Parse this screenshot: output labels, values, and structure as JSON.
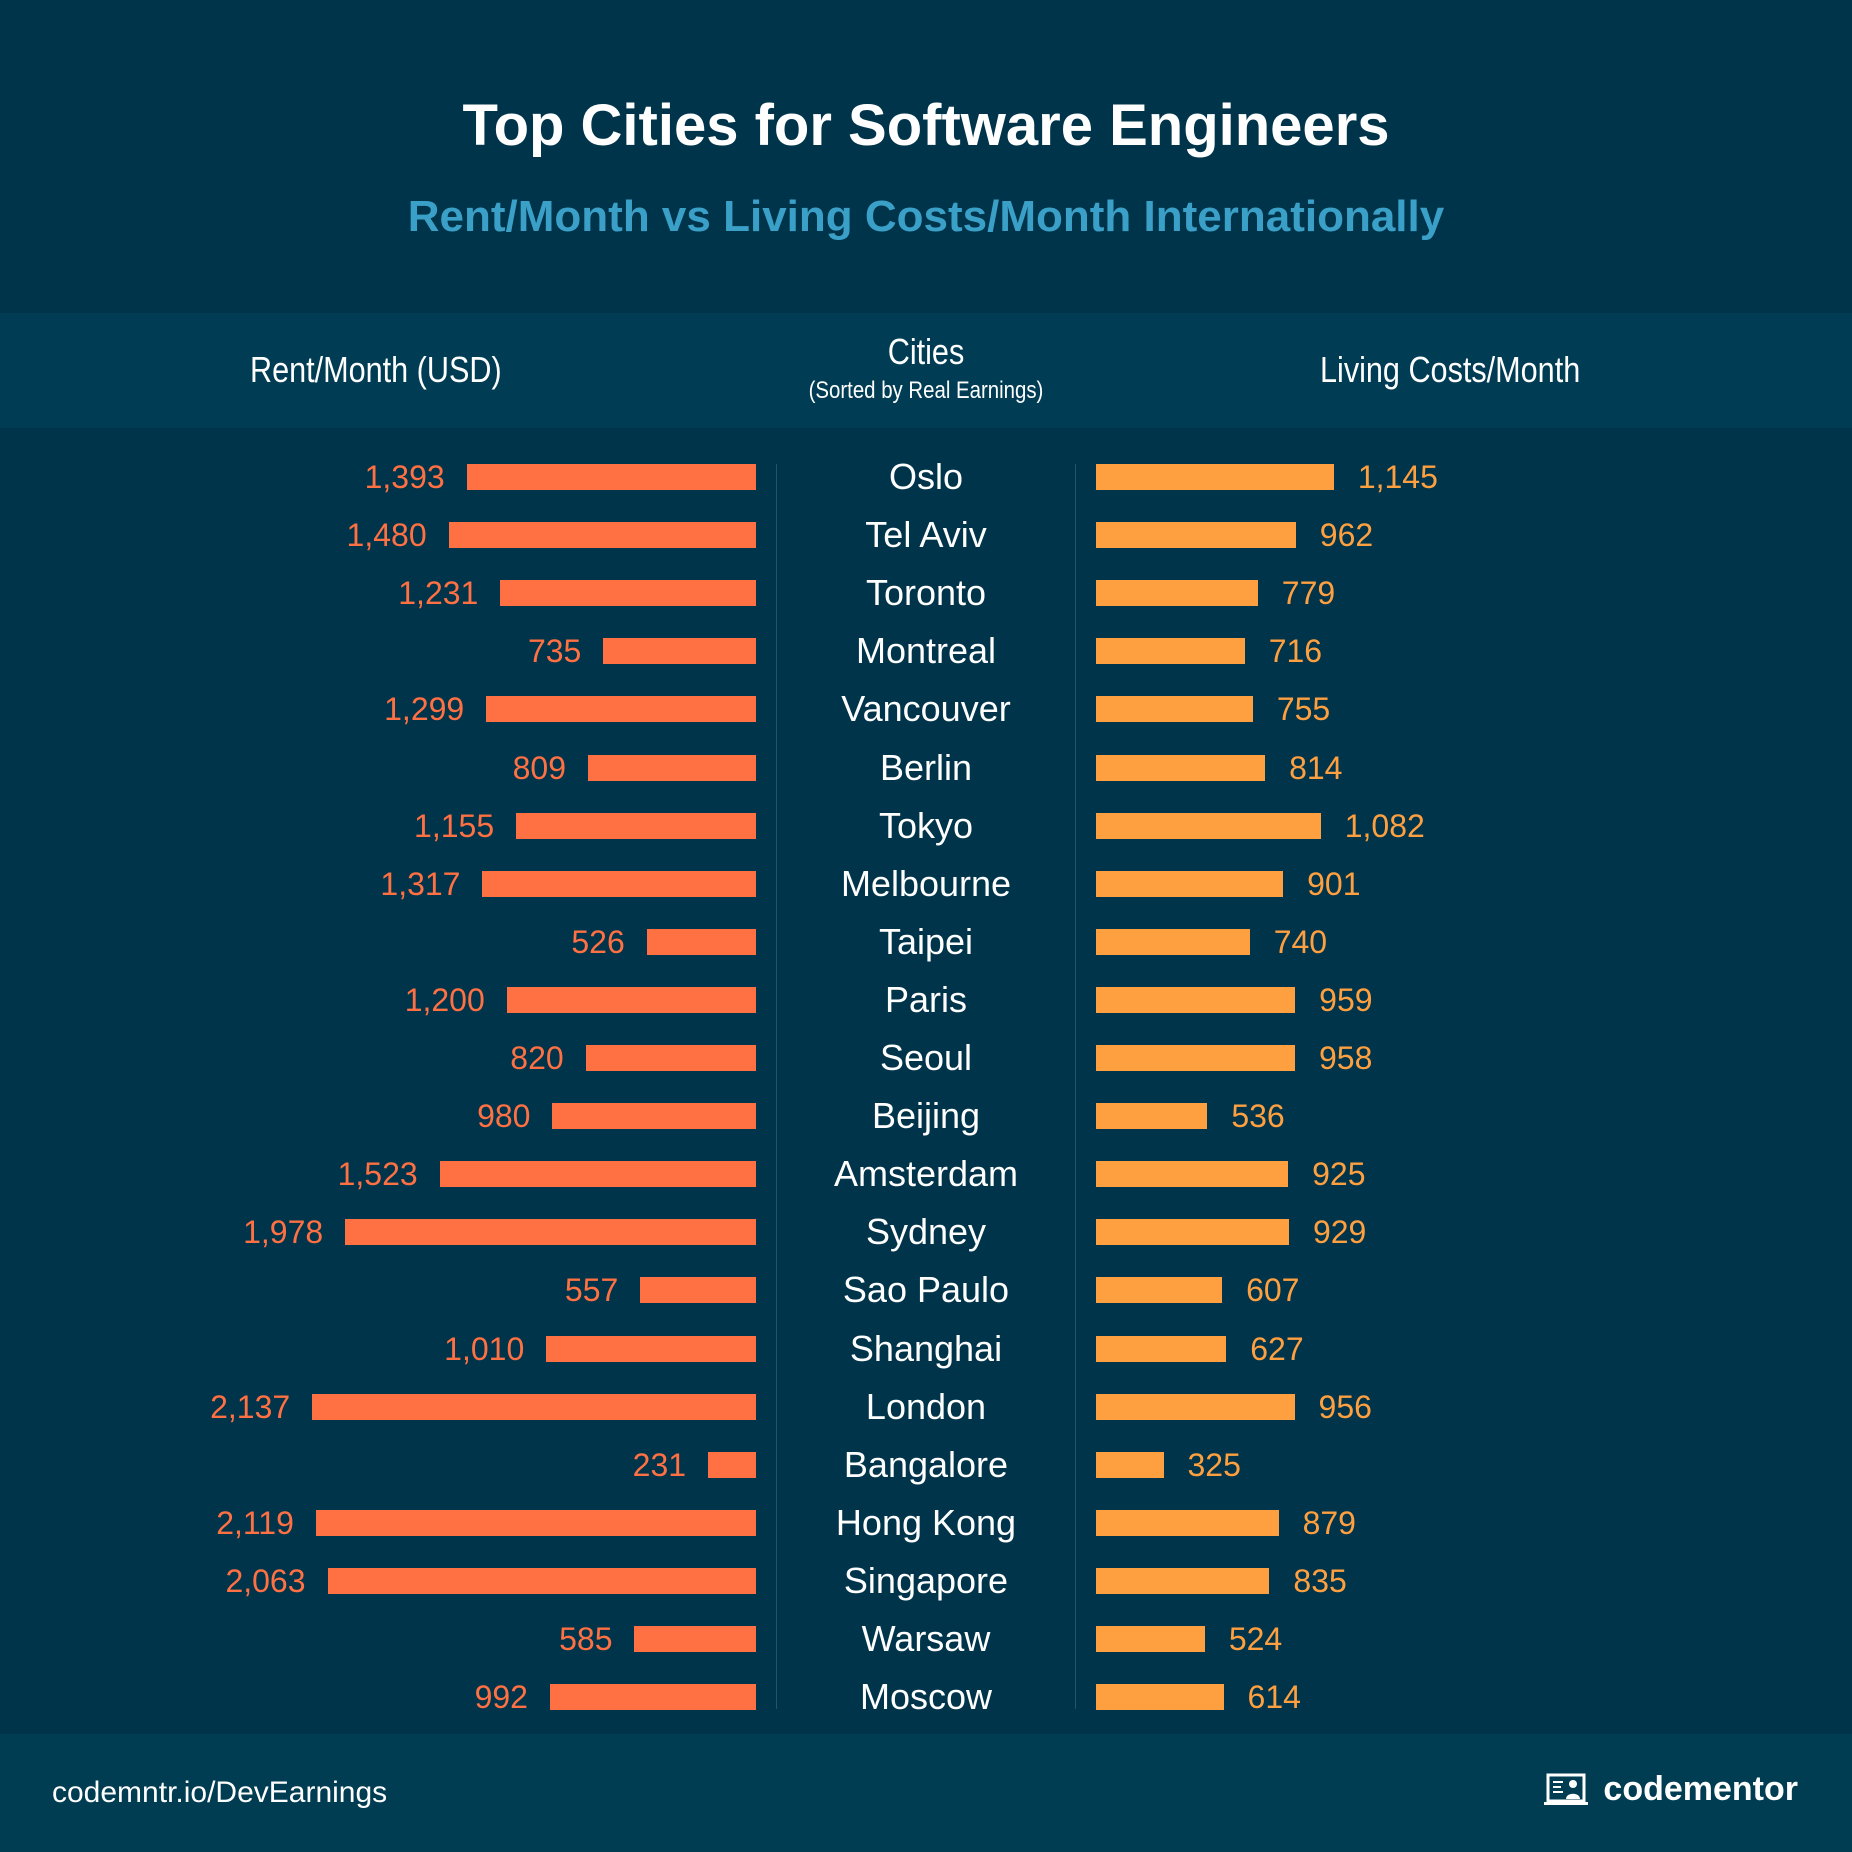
{
  "chart_data": {
    "type": "bar",
    "title": "Top Cities for Software Engineers",
    "subtitle": "Rent/Month vs Living Costs/Month Internationally",
    "column_headers": {
      "rent": "Rent/Month (USD)",
      "cities": "Cities",
      "cities_note": "(Sorted by Real Earnings)",
      "living": "Living Costs/Month"
    },
    "categories": [
      "Oslo",
      "Tel Aviv",
      "Toronto",
      "Montreal",
      "Vancouver",
      "Berlin",
      "Tokyo",
      "Melbourne",
      "Taipei",
      "Paris",
      "Seoul",
      "Beijing",
      "Amsterdam",
      "Sydney",
      "Sao Paulo",
      "Shanghai",
      "London",
      "Bangalore",
      "Hong Kong",
      "Singapore",
      "Warsaw",
      "Moscow"
    ],
    "series": [
      {
        "name": "Rent/Month (USD)",
        "color": "#ff7043",
        "values": [
          1393,
          1480,
          1231,
          735,
          1299,
          809,
          1155,
          1317,
          526,
          1200,
          820,
          980,
          1523,
          1978,
          557,
          1010,
          2137,
          231,
          2119,
          2063,
          585,
          992
        ],
        "labels": [
          "1,393",
          "1,480",
          "1,231",
          "735",
          "1,299",
          "809",
          "1,155",
          "1,317",
          "526",
          "1,200",
          "820",
          "980",
          "1,523",
          "1,978",
          "557",
          "1,010",
          "2,137",
          "231",
          "2,119",
          "2,063",
          "585",
          "992"
        ]
      },
      {
        "name": "Living Costs/Month",
        "color": "#ffa040",
        "values": [
          1145,
          962,
          779,
          716,
          755,
          814,
          1082,
          901,
          740,
          959,
          958,
          536,
          925,
          929,
          607,
          627,
          956,
          325,
          879,
          835,
          524,
          614
        ],
        "labels": [
          "1,145",
          "962",
          "779",
          "716",
          "755",
          "814",
          "1,082",
          "901",
          "740",
          "959",
          "958",
          "536",
          "925",
          "929",
          "607",
          "627",
          "956",
          "325",
          "879",
          "835",
          "524",
          "614"
        ]
      }
    ]
  },
  "footer": {
    "url": "codemntr.io/DevEarnings",
    "logo": "codementor"
  }
}
